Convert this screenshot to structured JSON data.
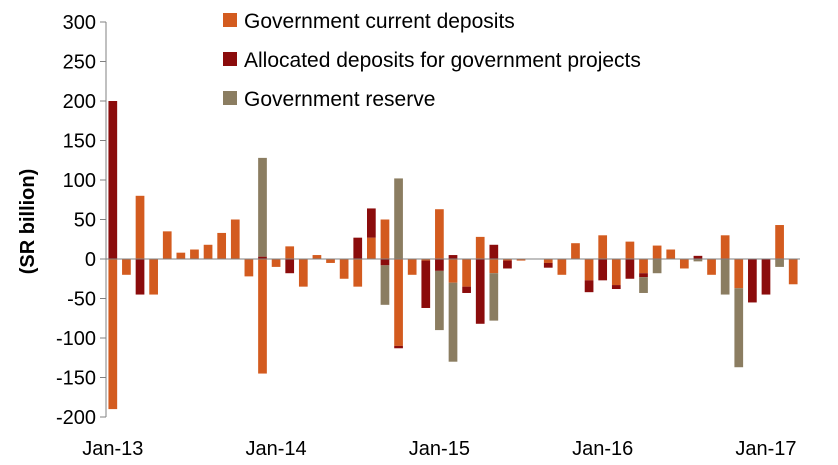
{
  "chart_data": {
    "type": "bar",
    "stacked": true,
    "ylabel": "(SR billion)",
    "ylim": [
      -200,
      300
    ],
    "y_ticks": [
      300,
      250,
      200,
      150,
      100,
      50,
      0,
      -50,
      -100,
      -150,
      -200
    ],
    "x_tick_labels": [
      {
        "index": 0,
        "label": "Jan-13"
      },
      {
        "index": 12,
        "label": "Jan-14"
      },
      {
        "index": 24,
        "label": "Jan-15"
      },
      {
        "index": 36,
        "label": "Jan-16"
      },
      {
        "index": 48,
        "label": "Jan-17"
      }
    ],
    "legend_position": "top-center",
    "series": [
      {
        "name": "Government current deposits",
        "color": "#D35B1F",
        "values": [
          -190,
          -20,
          80,
          -45,
          35,
          8,
          12,
          18,
          33,
          50,
          -22,
          -145,
          -10,
          16,
          -35,
          5,
          -5,
          -25,
          -35,
          27,
          50,
          -110,
          -20,
          -2,
          63,
          -30,
          -35,
          28,
          -18,
          -2,
          -2,
          0,
          -5,
          -20,
          20,
          -27,
          30,
          -33,
          22,
          -18,
          17,
          12,
          -12,
          0,
          -20,
          30,
          -37,
          0,
          0,
          43,
          -32
        ]
      },
      {
        "name": "Allocated deposits for government projects",
        "color": "#8B0C0C",
        "values": [
          200,
          0,
          -45,
          0,
          0,
          0,
          0,
          0,
          0,
          0,
          0,
          3,
          0,
          -18,
          0,
          0,
          0,
          0,
          27,
          37,
          -8,
          -3,
          0,
          -60,
          -15,
          5,
          -8,
          -82,
          18,
          -10,
          0,
          0,
          -6,
          0,
          0,
          -15,
          -27,
          -5,
          -25,
          -5,
          0,
          0,
          0,
          4,
          0,
          0,
          0,
          -55,
          -45,
          0,
          0
        ]
      },
      {
        "name": "Government reserve",
        "color": "#8B7D61",
        "values": [
          0,
          0,
          0,
          0,
          0,
          0,
          0,
          0,
          0,
          0,
          0,
          125,
          0,
          0,
          0,
          0,
          0,
          0,
          0,
          0,
          -50,
          102,
          0,
          0,
          -75,
          -100,
          0,
          0,
          -60,
          0,
          0,
          0,
          0,
          0,
          0,
          0,
          0,
          0,
          0,
          -20,
          -18,
          0,
          0,
          -3,
          0,
          -45,
          -100,
          0,
          0,
          -10,
          0
        ]
      }
    ]
  }
}
